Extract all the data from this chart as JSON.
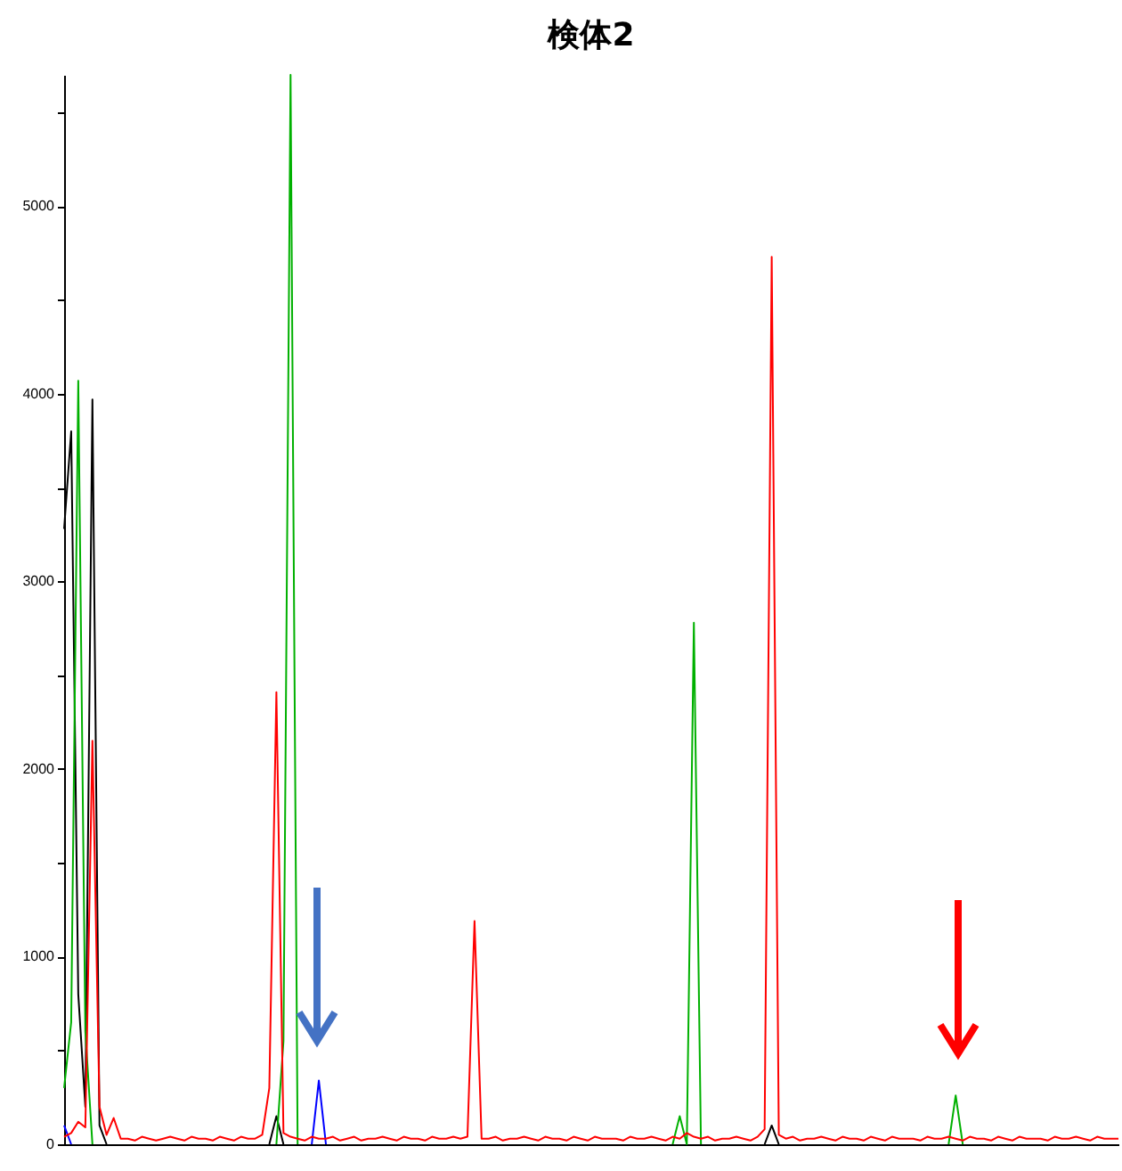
{
  "chart_data": {
    "type": "line",
    "title": "検体2",
    "categories": [
      null,
      null,
      null,
      null,
      null,
      null,
      null,
      null,
      null,
      null,
      null,
      null,
      null,
      null,
      null,
      null,
      null,
      null,
      null,
      null,
      null,
      null,
      null,
      null,
      null,
      null,
      null,
      null,
      null,
      null,
      null,
      null,
      null,
      null,
      null,
      null,
      null,
      null,
      null,
      null,
      null,
      null,
      null,
      null,
      null,
      null,
      null,
      null,
      null,
      null,
      null,
      null,
      null,
      null,
      null,
      null,
      null,
      null,
      null,
      null,
      null,
      null,
      null,
      null,
      null,
      null,
      null,
      null,
      null,
      null,
      null,
      null,
      null,
      null,
      null,
      null,
      null,
      null,
      null,
      null,
      null,
      null,
      null,
      null,
      null,
      null,
      null,
      null,
      null,
      null,
      null,
      null,
      null,
      null,
      null,
      null,
      null,
      null,
      null,
      null,
      null,
      null,
      null,
      null,
      null,
      null,
      null,
      null,
      null,
      null,
      null,
      null,
      null,
      null,
      null,
      null,
      null,
      null,
      null,
      null,
      null,
      null,
      null,
      null,
      null,
      null,
      null,
      null,
      null,
      null,
      null,
      null,
      null,
      null,
      null,
      null,
      null,
      null,
      null,
      null,
      null,
      null,
      null,
      null,
      null,
      null,
      null,
      null,
      null,
      null
    ],
    "series": [
      {
        "color": "#000000",
        "values": [
          3280,
          3800,
          800,
          200,
          3970,
          100,
          0,
          null,
          null,
          null,
          null,
          null,
          null,
          null,
          null,
          null,
          null,
          null,
          null,
          null,
          null,
          null,
          null,
          null,
          null,
          null,
          null,
          null,
          null,
          0,
          150,
          0,
          null,
          null,
          null,
          null,
          null,
          null,
          null,
          null,
          null,
          null,
          null,
          null,
          null,
          null,
          null,
          null,
          null,
          null,
          null,
          null,
          null,
          null,
          null,
          null,
          null,
          null,
          null,
          null,
          null,
          null,
          null,
          null,
          null,
          null,
          null,
          null,
          null,
          null,
          null,
          null,
          null,
          null,
          null,
          null,
          null,
          null,
          null,
          null,
          null,
          null,
          null,
          null,
          null,
          null,
          null,
          null,
          null,
          null,
          null,
          null,
          null,
          null,
          null,
          null,
          null,
          null,
          null,
          0,
          100,
          0,
          null,
          null,
          null,
          null,
          null,
          null,
          null,
          null,
          null,
          null,
          null,
          null,
          null,
          null,
          null,
          null,
          null,
          null,
          null,
          null,
          null,
          null,
          null,
          null,
          null,
          null,
          null,
          null,
          null,
          null,
          null,
          null,
          null,
          null,
          null,
          null,
          null,
          null,
          null,
          null,
          null,
          null,
          null,
          null,
          null,
          null,
          null,
          null
        ]
      },
      {
        "color": "#00b000",
        "values": [
          300,
          650,
          4070,
          600,
          0,
          null,
          null,
          null,
          null,
          null,
          null,
          null,
          null,
          null,
          null,
          null,
          null,
          null,
          null,
          null,
          null,
          null,
          null,
          null,
          null,
          null,
          null,
          null,
          null,
          null,
          0,
          550,
          5700,
          0,
          null,
          null,
          null,
          null,
          null,
          null,
          null,
          null,
          null,
          null,
          null,
          null,
          null,
          null,
          null,
          null,
          null,
          null,
          null,
          null,
          null,
          null,
          null,
          null,
          null,
          null,
          null,
          null,
          null,
          null,
          null,
          null,
          null,
          null,
          null,
          null,
          null,
          null,
          null,
          null,
          null,
          null,
          null,
          null,
          null,
          null,
          null,
          null,
          null,
          null,
          null,
          null,
          0,
          150,
          0,
          2780,
          0,
          null,
          null,
          null,
          null,
          null,
          null,
          null,
          null,
          null,
          null,
          null,
          null,
          null,
          null,
          null,
          null,
          null,
          null,
          null,
          null,
          null,
          null,
          null,
          null,
          null,
          null,
          null,
          null,
          null,
          null,
          null,
          null,
          null,
          null,
          0,
          260,
          0,
          null,
          null,
          null,
          null,
          null,
          null,
          null,
          null,
          null,
          null,
          null,
          null,
          null,
          null,
          null,
          null,
          null,
          null,
          null,
          null,
          null,
          null
        ]
      },
      {
        "color": "#0000ff",
        "values": [
          100,
          0,
          null,
          null,
          null,
          null,
          null,
          null,
          null,
          null,
          null,
          null,
          null,
          null,
          null,
          null,
          null,
          null,
          null,
          null,
          null,
          null,
          null,
          null,
          null,
          null,
          null,
          null,
          null,
          null,
          null,
          null,
          null,
          null,
          null,
          0,
          340,
          0,
          null,
          null,
          null,
          null,
          null,
          null,
          null,
          null,
          null,
          null,
          null,
          null,
          null,
          null,
          null,
          null,
          null,
          null,
          null,
          null,
          null,
          null,
          null,
          null,
          null,
          null,
          null,
          null,
          null,
          null,
          null,
          null,
          null,
          null,
          null,
          null,
          null,
          null,
          null,
          null,
          null,
          null,
          null,
          null,
          null,
          null,
          null,
          null,
          null,
          null,
          null,
          null,
          null,
          null,
          null,
          null,
          null,
          null,
          null,
          null,
          null,
          null,
          null,
          null,
          null,
          null,
          null,
          null,
          null,
          null,
          null,
          null,
          null,
          null,
          null,
          null,
          null,
          null,
          null,
          null,
          null,
          null,
          null,
          null,
          null,
          null,
          null,
          null,
          null,
          null,
          null,
          null,
          null,
          null,
          null,
          null,
          null,
          null,
          null,
          null,
          null,
          null,
          null,
          null,
          null,
          null,
          null,
          null,
          null,
          null,
          null,
          null
        ]
      },
      {
        "color": "#ff0000",
        "values": [
          40,
          60,
          120,
          90,
          2150,
          200,
          50,
          140,
          30,
          30,
          20,
          40,
          30,
          20,
          30,
          40,
          30,
          20,
          40,
          30,
          30,
          20,
          40,
          30,
          20,
          40,
          30,
          30,
          50,
          300,
          2410,
          60,
          40,
          30,
          20,
          40,
          30,
          30,
          40,
          20,
          30,
          40,
          20,
          30,
          30,
          40,
          30,
          20,
          40,
          30,
          30,
          20,
          40,
          30,
          30,
          40,
          30,
          40,
          1190,
          30,
          30,
          40,
          20,
          30,
          30,
          40,
          30,
          20,
          40,
          30,
          30,
          20,
          40,
          30,
          20,
          40,
          30,
          30,
          30,
          20,
          40,
          30,
          30,
          40,
          30,
          20,
          40,
          30,
          60,
          40,
          30,
          40,
          20,
          30,
          30,
          40,
          30,
          20,
          40,
          80,
          4730,
          50,
          30,
          40,
          20,
          30,
          30,
          40,
          30,
          20,
          40,
          30,
          30,
          20,
          40,
          30,
          20,
          40,
          30,
          30,
          30,
          20,
          40,
          30,
          30,
          40,
          30,
          20,
          40,
          30,
          30,
          20,
          40,
          30,
          20,
          40,
          30,
          30,
          30,
          20,
          40,
          30,
          30,
          40,
          30,
          20,
          40,
          30,
          30,
          30
        ]
      }
    ],
    "ylim": [
      0,
      5700
    ],
    "yticks": [
      0,
      {
        "value": 500,
        "label": null
      },
      1000,
      {
        "value": 1500,
        "label": null
      },
      2000,
      {
        "value": 2500,
        "label": null
      },
      3000,
      {
        "value": 3500,
        "label": null
      },
      4000,
      {
        "value": 4500,
        "label": null
      },
      5000,
      {
        "value": 5500,
        "label": null
      }
    ],
    "tick_labels": "y"
  }
}
